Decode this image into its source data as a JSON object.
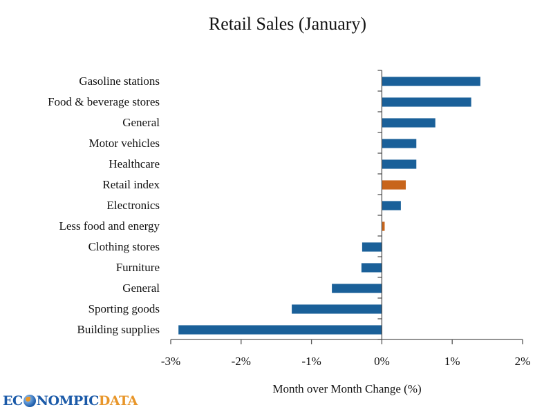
{
  "chart_data": {
    "type": "bar",
    "orientation": "horizontal",
    "title": "Retail Sales (January)",
    "xlabel": "Month over Month Change (%)",
    "ylabel": "",
    "xlim": [
      -3,
      2
    ],
    "xticks": [
      -3,
      -2,
      -1,
      0,
      1,
      2
    ],
    "xtick_labels": [
      "-3%",
      "-2%",
      "-1%",
      "0%",
      "1%",
      "2%"
    ],
    "grid": false,
    "legend": "none",
    "categories": [
      "Gasoline stations",
      "Food & beverage stores",
      "General",
      "Motor vehicles",
      "Healthcare",
      "Retail index",
      "Electronics",
      "Less food and energy",
      "Clothing stores",
      "Furniture",
      "General",
      "Sporting goods",
      "Building supplies"
    ],
    "values": [
      1.4,
      1.27,
      0.76,
      0.49,
      0.49,
      0.34,
      0.27,
      0.04,
      -0.28,
      -0.29,
      -0.71,
      -1.28,
      -2.89
    ],
    "highlight": [
      false,
      false,
      false,
      false,
      false,
      true,
      false,
      true,
      false,
      false,
      false,
      false,
      false
    ],
    "colors": {
      "default": "#1a6099",
      "highlight": "#c8651b",
      "axis": "#555555"
    }
  },
  "logo": {
    "part1": "EC",
    "part2": "NOMPIC",
    "part3": "DATA"
  }
}
